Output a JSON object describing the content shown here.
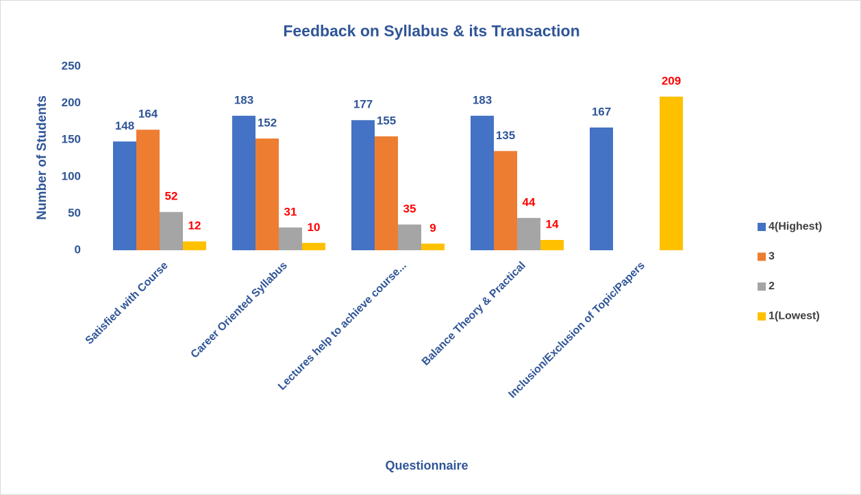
{
  "chart_data": {
    "type": "bar",
    "title": "Feedback on Syllabus & its Transaction",
    "x_label": "Questionnaire",
    "y_label": "Number of Students",
    "categories": [
      "Satisfied with Course",
      "Career Oriented Syllabus",
      "Lectures help to achieve course...",
      "Balance Theory & Practical",
      "Inclusion/Exclusion of Topic/Papers"
    ],
    "series": [
      {
        "name": "4(Highest)",
        "color": "#4472c4",
        "label_color": "#2f5597",
        "values": [
          148,
          183,
          177,
          183,
          167
        ]
      },
      {
        "name": "3",
        "color": "#ed7d31",
        "label_color": "#2f5597",
        "values": [
          164,
          152,
          155,
          135,
          null
        ]
      },
      {
        "name": "2",
        "color": "#a5a5a5",
        "label_color": "#ff0000",
        "values": [
          52,
          31,
          35,
          44,
          null
        ]
      },
      {
        "name": "1(Lowest)",
        "color": "#ffc000",
        "label_color": "#ff0000",
        "values": [
          12,
          10,
          9,
          14,
          209
        ]
      }
    ],
    "ylim": [
      0,
      250
    ],
    "yticks": [
      0,
      50,
      100,
      150,
      200,
      250
    ],
    "grid": false,
    "legend": "right"
  }
}
